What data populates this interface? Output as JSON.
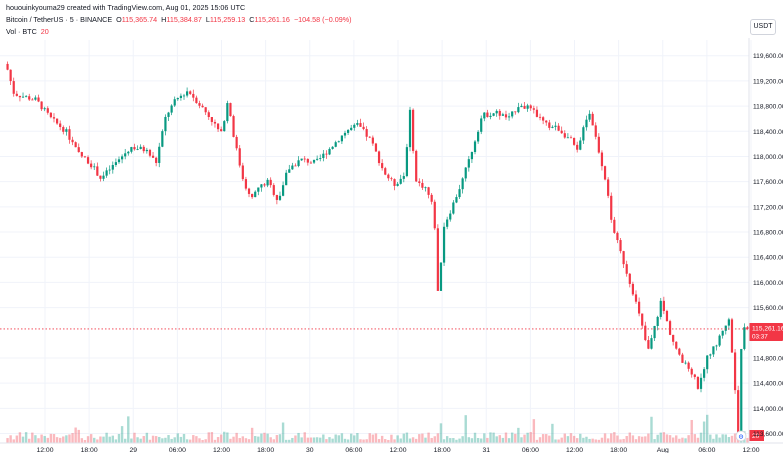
{
  "header": {
    "attribution": "hououinkyouma29 created with TradingView.com, Aug 01, 2025 15:06 UTC",
    "symbol": "Bitcoin / TetherUS · 5 · BINANCE",
    "o_label": "O",
    "o_value": "115,365.74",
    "h_label": "H",
    "h_value": "115,384.87",
    "l_label": "L",
    "l_value": "115,259.13",
    "c_label": "C",
    "c_value": "115,261.16",
    "change": "−104.58 (−0.09%)",
    "volume_label": "Vol · BTC",
    "volume_value": "20"
  },
  "currency": "USDT",
  "colors": {
    "up": "#089981",
    "down": "#f23645",
    "grid": "#f0f3fa",
    "price_line": "#f23645"
  },
  "price_tag": {
    "price": "115,261.16",
    "countdown": "03:37"
  },
  "volume_tag": "20",
  "tv_logo": "tradingview-logo",
  "chart_data": {
    "type": "candlestick",
    "symbol": "BTCUSDT",
    "interval": "5",
    "y_ticks": [
      {
        "value": 119600,
        "label": "119,600.00"
      },
      {
        "value": 119200,
        "label": "119,200.00"
      },
      {
        "value": 118800,
        "label": "118,800.00"
      },
      {
        "value": 118400,
        "label": "118,400.00"
      },
      {
        "value": 118000,
        "label": "118,000.00"
      },
      {
        "value": 117600,
        "label": "117,600.00"
      },
      {
        "value": 117200,
        "label": "117,200.00"
      },
      {
        "value": 116800,
        "label": "116,800.00"
      },
      {
        "value": 116400,
        "label": "116,400.00"
      },
      {
        "value": 116000,
        "label": "116,000.00"
      },
      {
        "value": 115600,
        "label": "115,600.00"
      },
      {
        "value": 114800,
        "label": "114,800.00"
      },
      {
        "value": 114400,
        "label": "114,400.00"
      },
      {
        "value": 114000,
        "label": "114,000.00"
      },
      {
        "value": 113600,
        "label": "113,600.00"
      }
    ],
    "ylim": [
      113450,
      119850
    ],
    "x_ticks": [
      "12:00",
      "18:00",
      "29",
      "06:00",
      "12:00",
      "18:00",
      "30",
      "06:00",
      "12:00",
      "18:00",
      "31",
      "06:00",
      "12:00",
      "18:00",
      "Aug",
      "06:00",
      "12:00"
    ],
    "last_price": 115261.16,
    "price_path": [
      [
        0,
        119470
      ],
      [
        8,
        119000
      ],
      [
        18,
        118950
      ],
      [
        30,
        118900
      ],
      [
        45,
        118600
      ],
      [
        60,
        118400
      ],
      [
        72,
        118050
      ],
      [
        84,
        117900
      ],
      [
        95,
        117650
      ],
      [
        110,
        117900
      ],
      [
        125,
        118150
      ],
      [
        140,
        118100
      ],
      [
        150,
        117900
      ],
      [
        160,
        118650
      ],
      [
        170,
        118900
      ],
      [
        182,
        119050
      ],
      [
        195,
        118800
      ],
      [
        205,
        118600
      ],
      [
        215,
        118350
      ],
      [
        222,
        118900
      ],
      [
        228,
        118300
      ],
      [
        236,
        117700
      ],
      [
        245,
        117300
      ],
      [
        252,
        117500
      ],
      [
        262,
        117600
      ],
      [
        272,
        117300
      ],
      [
        282,
        117800
      ],
      [
        295,
        117950
      ],
      [
        310,
        117900
      ],
      [
        325,
        118150
      ],
      [
        340,
        118400
      ],
      [
        352,
        118500
      ],
      [
        365,
        118250
      ],
      [
        378,
        117750
      ],
      [
        388,
        117550
      ],
      [
        398,
        117700
      ],
      [
        404,
        118700
      ],
      [
        410,
        117600
      ],
      [
        420,
        117500
      ],
      [
        428,
        117150
      ],
      [
        432,
        115800
      ],
      [
        438,
        116900
      ],
      [
        446,
        117200
      ],
      [
        456,
        117600
      ],
      [
        466,
        118100
      ],
      [
        476,
        118650
      ],
      [
        490,
        118700
      ],
      [
        503,
        118600
      ],
      [
        514,
        118850
      ],
      [
        528,
        118700
      ],
      [
        540,
        118500
      ],
      [
        552,
        118450
      ],
      [
        565,
        118250
      ],
      [
        572,
        118050
      ],
      [
        578,
        118550
      ],
      [
        584,
        118700
      ],
      [
        592,
        118150
      ],
      [
        600,
        117600
      ],
      [
        605,
        117000
      ],
      [
        612,
        116600
      ],
      [
        620,
        116200
      ],
      [
        628,
        115800
      ],
      [
        636,
        115300
      ],
      [
        642,
        114900
      ],
      [
        648,
        115250
      ],
      [
        655,
        115700
      ],
      [
        665,
        115150
      ],
      [
        675,
        114750
      ],
      [
        685,
        114600
      ],
      [
        693,
        114300
      ],
      [
        700,
        114800
      ],
      [
        710,
        115000
      ],
      [
        718,
        115300
      ],
      [
        723,
        115400
      ],
      [
        728,
        114550
      ],
      [
        732,
        113600
      ],
      [
        736,
        115200
      ],
      [
        740,
        115350
      ],
      [
        743,
        115261
      ]
    ]
  }
}
